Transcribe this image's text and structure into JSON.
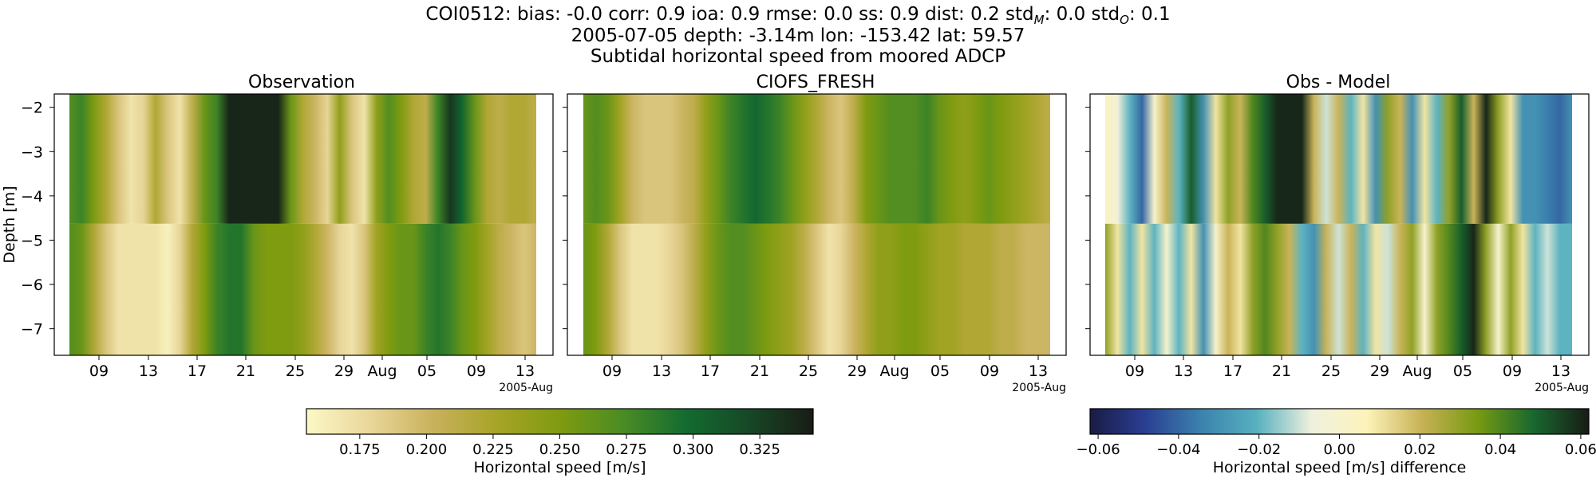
{
  "header": {
    "stats": {
      "station": "COI0512:",
      "bias_label": "bias:",
      "bias": "-0.0",
      "corr_label": "corr:",
      "corr": "0.9",
      "ioa_label": "ioa:",
      "ioa": "0.9",
      "rmse_label": "rmse:",
      "rmse": "0.0",
      "ss_label": "ss:",
      "ss": "0.9",
      "dist_label": "dist:",
      "dist": "0.2",
      "std_label": "std",
      "std_m_sub": "M",
      "std_m": ": 0.0",
      "std_o_sub": "O",
      "std_o": ": 0.1"
    },
    "line2": "2005-07-05 depth: -3.14m lon: -153.42 lat: 59.57",
    "line3": "Subtidal horizontal speed from moored ADCP"
  },
  "colors": {
    "speed_cmap": [
      "#fcf8c6",
      "#e9d79a",
      "#c9b15c",
      "#a7a427",
      "#7f9b10",
      "#4a8c24",
      "#136b30",
      "#174726",
      "#181c15"
    ],
    "diff_cmap": [
      "#1a1b45",
      "#2a3f93",
      "#3b82ad",
      "#57b0bf",
      "#eff1de",
      "#fdf3b9",
      "#c6b154",
      "#779a12",
      "#18682f",
      "#171c15"
    ]
  },
  "chart_data": [
    {
      "type": "heatmap",
      "title": "Observation",
      "ylabel": "Depth [m]",
      "ylim": [
        -7.6,
        -1.7
      ],
      "yticks": [
        "−2",
        "−3",
        "−4",
        "−5",
        "−6",
        "−7"
      ],
      "xticks": [
        "09",
        "13",
        "17",
        "21",
        "25",
        "29",
        "Aug",
        "05",
        "09",
        "13"
      ],
      "x_offset_label": "2005-Aug",
      "x_start": "2005-07-06",
      "x_end": "2005-08-13",
      "rows": [
        {
          "depth_top": -1.7,
          "depth_bottom": -4.63,
          "values": [
            0.27,
            0.28,
            0.25,
            0.22,
            0.19,
            0.17,
            0.18,
            0.22,
            0.19,
            0.17,
            0.21,
            0.26,
            0.28,
            0.34,
            0.34,
            0.34,
            0.34,
            0.34,
            0.26,
            0.22,
            0.2,
            0.18,
            0.24,
            0.19,
            0.17,
            0.24,
            0.27,
            0.25,
            0.22,
            0.21,
            0.28,
            0.33,
            0.3,
            0.26,
            0.22,
            0.21,
            0.22,
            0.22,
            0.21
          ]
        },
        {
          "depth_top": -4.63,
          "depth_bottom": -7.6,
          "values": [
            0.27,
            0.26,
            0.22,
            0.19,
            0.17,
            0.17,
            0.17,
            0.17,
            0.16,
            0.18,
            0.22,
            0.25,
            0.28,
            0.29,
            0.29,
            0.26,
            0.25,
            0.25,
            0.25,
            0.24,
            0.22,
            0.2,
            0.18,
            0.17,
            0.19,
            0.23,
            0.25,
            0.26,
            0.26,
            0.28,
            0.29,
            0.28,
            0.26,
            0.25,
            0.23,
            0.21,
            0.2,
            0.19,
            0.2
          ]
        }
      ]
    },
    {
      "type": "heatmap",
      "title": "CIOFS_FRESH",
      "ylim": [
        -7.6,
        -1.7
      ],
      "xticks": [
        "09",
        "13",
        "17",
        "21",
        "25",
        "29",
        "Aug",
        "05",
        "09",
        "13"
      ],
      "x_offset_label": "2005-Aug",
      "x_start": "2005-07-06",
      "x_end": "2005-08-13",
      "rows": [
        {
          "depth_top": -1.7,
          "depth_bottom": -4.63,
          "values": [
            0.26,
            0.27,
            0.26,
            0.23,
            0.2,
            0.19,
            0.19,
            0.19,
            0.2,
            0.21,
            0.24,
            0.26,
            0.28,
            0.29,
            0.3,
            0.29,
            0.28,
            0.26,
            0.24,
            0.22,
            0.2,
            0.19,
            0.21,
            0.25,
            0.26,
            0.27,
            0.27,
            0.27,
            0.28,
            0.26,
            0.25,
            0.24,
            0.25,
            0.26,
            0.25,
            0.24,
            0.23,
            0.22,
            0.21
          ]
        },
        {
          "depth_top": -4.63,
          "depth_bottom": -7.6,
          "values": [
            0.26,
            0.25,
            0.22,
            0.19,
            0.17,
            0.17,
            0.17,
            0.18,
            0.19,
            0.21,
            0.24,
            0.26,
            0.27,
            0.27,
            0.26,
            0.25,
            0.24,
            0.23,
            0.21,
            0.19,
            0.17,
            0.18,
            0.2,
            0.22,
            0.24,
            0.24,
            0.25,
            0.25,
            0.24,
            0.23,
            0.23,
            0.22,
            0.22,
            0.22,
            0.21,
            0.21,
            0.2,
            0.2,
            0.2
          ]
        }
      ]
    },
    {
      "type": "heatmap",
      "title": "Obs - Model",
      "ylim": [
        -7.6,
        -1.7
      ],
      "xticks": [
        "09",
        "13",
        "17",
        "21",
        "25",
        "29",
        "Aug",
        "05",
        "09",
        "13"
      ],
      "x_offset_label": "2005-Aug",
      "x_start": "2005-07-06",
      "x_end": "2005-08-13",
      "rows": [
        {
          "depth_top": -1.7,
          "depth_bottom": -4.63,
          "values": [
            0.005,
            -0.005,
            -0.02,
            -0.04,
            0.0,
            0.02,
            -0.02,
            0.05,
            -0.03,
            0.01,
            0.03,
            0.02,
            0.04,
            0.05,
            0.06,
            0.06,
            0.06,
            0.02,
            -0.01,
            0.02,
            -0.02,
            0.01,
            -0.03,
            0.03,
            0.02,
            -0.03,
            0.01,
            -0.02,
            0.03,
            0.05,
            0.02,
            0.06,
            0.03,
            0.01,
            -0.03,
            -0.03,
            -0.035,
            -0.04,
            -0.03
          ]
        },
        {
          "depth_top": -4.63,
          "depth_bottom": -7.6,
          "values": [
            0.03,
            0.01,
            -0.02,
            0.01,
            -0.02,
            0.0,
            -0.02,
            0.01,
            -0.03,
            0.0,
            0.02,
            0.01,
            0.03,
            0.04,
            0.03,
            0.02,
            -0.02,
            -0.03,
            0.02,
            -0.01,
            0.02,
            -0.02,
            0.01,
            -0.01,
            0.02,
            0.03,
            0.0,
            0.03,
            0.04,
            0.05,
            0.06,
            0.03,
            0.0,
            0.03,
            0.01,
            -0.02,
            -0.01,
            -0.02,
            -0.02
          ]
        }
      ]
    }
  ],
  "colorbars": [
    {
      "label": "Horizontal speed [m/s]",
      "range": [
        0.155,
        0.345
      ],
      "ticks": [
        0.175,
        0.2,
        0.225,
        0.25,
        0.275,
        0.3,
        0.325
      ],
      "tick_labels": [
        "0.175",
        "0.200",
        "0.225",
        "0.250",
        "0.275",
        "0.300",
        "0.325"
      ]
    },
    {
      "label": "Horizontal speed [m/s] difference",
      "range": [
        -0.062,
        0.062
      ],
      "ticks": [
        -0.06,
        -0.04,
        -0.02,
        0.0,
        0.02,
        0.04,
        0.06
      ],
      "tick_labels": [
        "−0.06",
        "−0.04",
        "−0.02",
        "0.00",
        "0.02",
        "0.04",
        "0.06"
      ]
    }
  ]
}
